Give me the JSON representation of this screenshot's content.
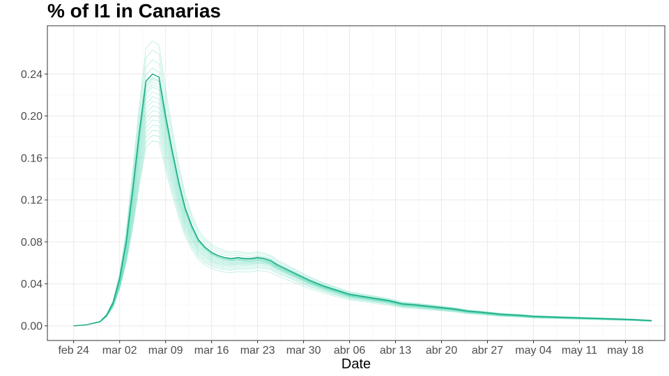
{
  "chart_data": {
    "type": "line",
    "title": "% of I1 in  Canarias",
    "xlabel": "Date",
    "ylabel": "",
    "x_tick_labels": [
      "feb 24",
      "mar 02",
      "mar 09",
      "mar 16",
      "mar 23",
      "mar 30",
      "abr 06",
      "abr 13",
      "abr 20",
      "abr 27",
      "may 04",
      "may 11",
      "may 18"
    ],
    "y_tick_labels": [
      "0.00",
      "0.04",
      "0.08",
      "0.12",
      "0.16",
      "0.20",
      "0.24"
    ],
    "y_ticks": [
      0,
      0.04,
      0.08,
      0.12,
      0.16,
      0.2,
      0.24
    ],
    "ylim": [
      -0.014,
      0.286
    ],
    "x_day_range": [
      -4,
      90
    ],
    "grid": true,
    "legend": "none",
    "color_main": "#1aa680",
    "color_ensemble": "#4dd4b0",
    "main_series": {
      "x": [
        0,
        2,
        4,
        5,
        6,
        7,
        8,
        9,
        10,
        11,
        12,
        13,
        14,
        15,
        16,
        17,
        18,
        19,
        20,
        21,
        22,
        23,
        24,
        25,
        26,
        27,
        28,
        29,
        30,
        31,
        32,
        33,
        34,
        35,
        36,
        38,
        40,
        42,
        44,
        46,
        48,
        50,
        52,
        55,
        58,
        60,
        62,
        65,
        68,
        70,
        75,
        80,
        85,
        88
      ],
      "y": [
        0.0,
        0.001,
        0.004,
        0.01,
        0.022,
        0.045,
        0.08,
        0.13,
        0.185,
        0.233,
        0.24,
        0.237,
        0.2,
        0.167,
        0.137,
        0.112,
        0.095,
        0.082,
        0.075,
        0.07,
        0.067,
        0.065,
        0.064,
        0.065,
        0.064,
        0.064,
        0.065,
        0.064,
        0.062,
        0.058,
        0.055,
        0.052,
        0.049,
        0.046,
        0.043,
        0.038,
        0.034,
        0.03,
        0.028,
        0.026,
        0.024,
        0.021,
        0.02,
        0.018,
        0.016,
        0.014,
        0.013,
        0.011,
        0.01,
        0.009,
        0.008,
        0.007,
        0.006,
        0.005
      ]
    },
    "ensemble_scales": [
      0.72,
      0.74,
      0.76,
      0.78,
      0.8,
      0.82,
      0.84,
      0.86,
      0.88,
      0.9,
      0.92,
      0.94,
      0.95,
      0.96,
      0.97,
      0.98,
      0.99,
      1.01,
      1.03,
      1.06,
      1.1,
      1.14
    ],
    "ensemble_tail_factors": [
      0.82,
      0.86,
      0.88,
      0.9,
      0.92,
      0.93,
      0.94,
      0.95,
      0.96,
      0.97,
      0.98,
      0.99,
      1.0,
      1.01,
      1.02,
      1.0,
      0.97,
      0.95,
      0.98,
      1.03,
      1.06,
      1.08
    ]
  }
}
